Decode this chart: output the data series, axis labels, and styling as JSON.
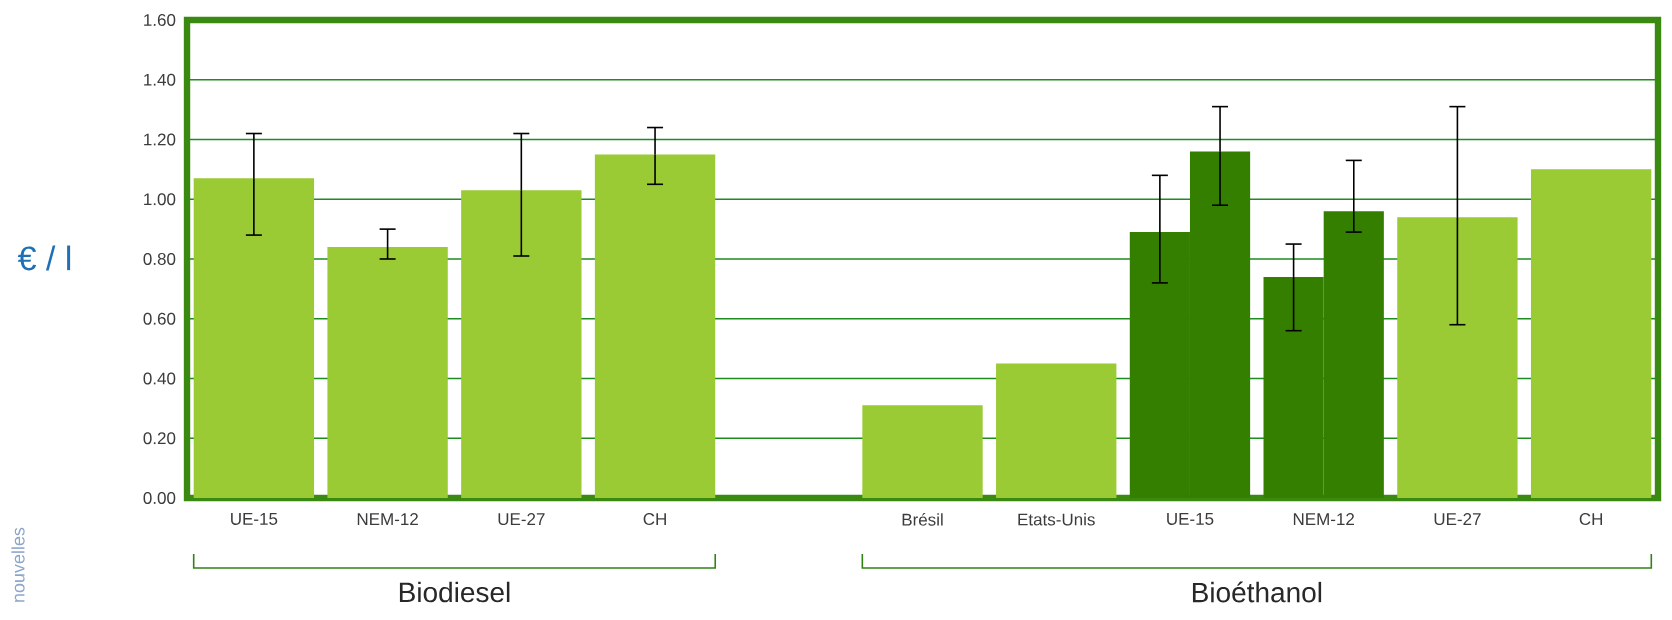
{
  "chart_data": {
    "type": "bar",
    "ylabel": "€ / l",
    "categories": [
      "UE-15",
      "NEM-12",
      "UE-27",
      "CH",
      null,
      "Brésil",
      "Etats-Unis",
      "UE-15",
      "NEM-12",
      "UE-27",
      "CH"
    ],
    "series": [
      {
        "color": "#9aca34",
        "values": [
          1.07,
          0.84,
          1.03,
          1.15,
          null,
          0.31,
          0.45,
          null,
          null,
          0.94,
          1.1
        ],
        "errors": [
          [
            0.88,
            1.22
          ],
          [
            0.8,
            0.9
          ],
          [
            0.81,
            1.22
          ],
          [
            1.05,
            1.24
          ],
          null,
          null,
          null,
          null,
          null,
          [
            0.58,
            1.31
          ],
          null
        ]
      },
      {
        "color": "#347f00",
        "values": [
          null,
          null,
          null,
          null,
          null,
          null,
          null,
          0.89,
          0.74,
          null,
          null
        ],
        "errors": [
          null,
          null,
          null,
          null,
          null,
          null,
          null,
          [
            0.72,
            1.08
          ],
          [
            0.56,
            0.85
          ],
          null,
          null
        ]
      },
      {
        "color": "#347f00",
        "values": [
          null,
          null,
          null,
          null,
          null,
          null,
          null,
          1.16,
          0.96,
          null,
          null
        ],
        "errors": [
          null,
          null,
          null,
          null,
          null,
          null,
          null,
          [
            0.98,
            1.31
          ],
          [
            0.89,
            1.13
          ],
          null,
          null
        ]
      }
    ],
    "ylim": [
      0,
      1.6
    ],
    "yticks": [
      {
        "value": 0,
        "label": "0.00"
      },
      {
        "value": 0.2,
        "label": "0.20"
      },
      {
        "value": 0.4,
        "label": "0.40"
      },
      {
        "value": 0.6,
        "label": "0.60"
      },
      {
        "value": 0.8,
        "label": "0.80"
      },
      {
        "value": 1.0,
        "label": "1.00"
      },
      {
        "value": 1.2,
        "label": "1.20"
      },
      {
        "value": 1.4,
        "label": "1.40"
      },
      {
        "value": 1.6,
        "label": "1.60"
      }
    ],
    "grid": "y",
    "annotations": [
      "Biodiesel",
      "Bioéthanol",
      "nouvelles"
    ]
  }
}
